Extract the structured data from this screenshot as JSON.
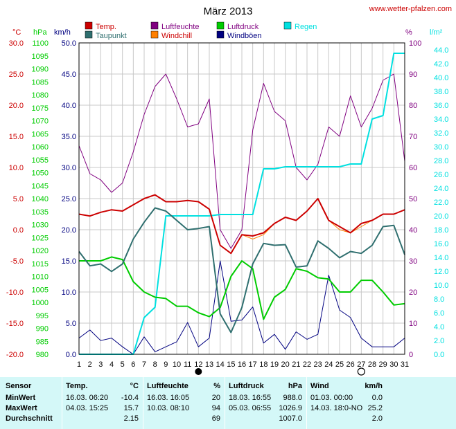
{
  "header": {
    "title": "März 2013",
    "site": "www.wetter-pfalzen.com"
  },
  "legend": {
    "temp": {
      "label": "Temp.",
      "color": "#cc0000"
    },
    "dew": {
      "label": "Taupunkt",
      "color": "#2f6f6f"
    },
    "humidity": {
      "label": "Luftfeuchte",
      "color": "#800080"
    },
    "windchill": {
      "label": "Windchill",
      "color": "#ff8000"
    },
    "pressure": {
      "label": "Luftdruck",
      "color": "#00cc00"
    },
    "gust": {
      "label": "Windböen",
      "color": "#000080"
    },
    "rain": {
      "label": "Regen",
      "color": "#00e0e0"
    }
  },
  "chart_data": {
    "type": "line",
    "x": [
      1,
      2,
      3,
      4,
      5,
      6,
      7,
      8,
      9,
      10,
      11,
      12,
      13,
      14,
      15,
      16,
      17,
      18,
      19,
      20,
      21,
      22,
      23,
      24,
      25,
      26,
      27,
      28,
      29,
      30,
      31
    ],
    "axes": {
      "temp": {
        "unit": "°C",
        "range": [
          -20,
          30
        ],
        "ticks": [
          "30.0",
          "25.0",
          "20.0",
          "15.0",
          "10.0",
          "5.0",
          "0.0",
          "-5.0",
          "-10.0",
          "-15.0",
          "-20.0"
        ],
        "color": "#cc0000"
      },
      "pressure": {
        "unit": "hPa",
        "range": [
          980,
          1100
        ],
        "ticks": [
          "1100",
          "1095",
          "1090",
          "1085",
          "1080",
          "1075",
          "1070",
          "1065",
          "1060",
          "1055",
          "1050",
          "1045",
          "1040",
          "1035",
          "1030",
          "1025",
          "1020",
          "1015",
          "1010",
          "1005",
          "1000",
          "995",
          "990",
          "985",
          "980"
        ],
        "color": "#00cc00"
      },
      "wind": {
        "unit": "km/h",
        "range": [
          0,
          50
        ],
        "ticks": [
          "50.0",
          "45.0",
          "40.0",
          "35.0",
          "30.0",
          "25.0",
          "20.0",
          "15.0",
          "10.0",
          "5.0",
          "0.0"
        ],
        "color": "#000080"
      },
      "humidity": {
        "unit": "%",
        "range": [
          0,
          100
        ],
        "ticks": [
          "100",
          "90",
          "80",
          "70",
          "60",
          "50",
          "40",
          "30",
          "20",
          "10",
          "0"
        ],
        "color": "#800080"
      },
      "rain": {
        "unit": "l/m²",
        "range": [
          0,
          45
        ],
        "ticks": [
          "44.0",
          "42.0",
          "40.0",
          "38.0",
          "36.0",
          "34.0",
          "32.0",
          "30.0",
          "28.0",
          "26.0",
          "24.0",
          "22.0",
          "20.0",
          "18.0",
          "16.0",
          "14.0",
          "12.0",
          "10.0",
          "8.0",
          "6.0",
          "4.0",
          "2.0",
          "0.0"
        ],
        "color": "#00e0e0"
      }
    },
    "x_ticks": [
      "1",
      "2",
      "3",
      "4",
      "5",
      "6",
      "7",
      "8",
      "9",
      "10",
      "11",
      "12",
      "13",
      "14",
      "15",
      "16",
      "17",
      "18",
      "19",
      "20",
      "21",
      "22",
      "23",
      "24",
      "25",
      "26",
      "27",
      "28",
      "29",
      "30",
      "31"
    ],
    "moon": {
      "full_moon_day": 12,
      "new_moon_day": 27
    },
    "grid": true,
    "series": [
      {
        "name": "Temp.",
        "axis": "temp",
        "values": [
          2.5,
          2.2,
          2.8,
          3.2,
          3.0,
          4.0,
          5.0,
          5.6,
          4.5,
          4.5,
          4.7,
          4.5,
          3.3,
          -2.5,
          -3.8,
          -0.8,
          -1.0,
          -0.5,
          1.0,
          2.0,
          1.5,
          3.0,
          5.0,
          1.5,
          0.5,
          -0.5,
          1.0,
          1.5,
          2.5,
          2.5,
          3.2
        ]
      },
      {
        "name": "Windchill",
        "axis": "temp",
        "values": [
          2.5,
          2.2,
          2.8,
          3.2,
          3.0,
          4.0,
          5.0,
          5.6,
          4.5,
          4.5,
          4.7,
          4.5,
          3.3,
          -2.5,
          -3.8,
          -0.8,
          -1.5,
          -0.8,
          1.0,
          2.0,
          1.5,
          3.0,
          5.0,
          1.5,
          0.0,
          -0.5,
          0.5,
          1.5,
          2.5,
          2.5,
          3.2
        ]
      },
      {
        "name": "Taupunkt",
        "axis": "temp",
        "values": [
          -3.5,
          -5.8,
          -5.5,
          -6.7,
          -5.5,
          -1.5,
          1.2,
          3.5,
          3.0,
          1.5,
          0.0,
          0.2,
          0.5,
          -13.5,
          -16.5,
          -12.5,
          -5.5,
          -2.2,
          -2.5,
          -2.4,
          -6.0,
          -5.8,
          -1.8,
          -3.0,
          -4.5,
          -3.5,
          -3.8,
          -2.5,
          0.5,
          0.7,
          -4.0
        ]
      },
      {
        "name": "Luftfeuchte",
        "axis": "humidity",
        "values": [
          67,
          58,
          56,
          52,
          55,
          65,
          77,
          86,
          90,
          82,
          73,
          74,
          82,
          40,
          34,
          40,
          72,
          87,
          78,
          75,
          60,
          56,
          61,
          73,
          70,
          83,
          73,
          79,
          88,
          90,
          62
        ]
      },
      {
        "name": "Luftdruck",
        "axis": "pressure",
        "values": [
          1016.0,
          1016.0,
          1016.0,
          1017.5,
          1016.5,
          1008.0,
          1004.0,
          1002.0,
          1001.5,
          998.5,
          998.5,
          996.0,
          994.5,
          998.0,
          1010.0,
          1016.0,
          1013.0,
          993.5,
          1002.0,
          1005.0,
          1013.0,
          1012.0,
          1009.5,
          1009.0,
          1004.0,
          1004.0,
          1008.5,
          1008.5,
          1004.0,
          999.0,
          999.5
        ]
      },
      {
        "name": "Windböen",
        "axis": "wind",
        "values": [
          2.6,
          3.9,
          2.2,
          2.6,
          1.2,
          0.0,
          2.8,
          0.4,
          1.2,
          2.0,
          5.1,
          1.2,
          2.6,
          15.0,
          5.3,
          5.5,
          7.6,
          1.8,
          3.2,
          0.8,
          3.6,
          2.4,
          3.2,
          12.7,
          7.1,
          5.9,
          2.6,
          1.2,
          1.2,
          1.2,
          2.6
        ]
      },
      {
        "name": "Regen",
        "axis": "rain",
        "values": [
          0.0,
          0.0,
          0.0,
          0.0,
          0.0,
          0.0,
          5.3,
          6.8,
          20.0,
          20.0,
          20.0,
          20.0,
          20.0,
          20.2,
          20.2,
          20.2,
          20.2,
          26.8,
          26.8,
          27.1,
          27.1,
          27.1,
          27.1,
          27.1,
          27.1,
          27.5,
          27.5,
          34.0,
          34.5,
          43.5,
          43.5
        ]
      }
    ]
  },
  "table": {
    "headers": {
      "sensor": "Sensor",
      "temp": "Temp.",
      "temp_unit": "°C",
      "hum": "Luftfeuchte",
      "hum_unit": "%",
      "press": "Luftdruck",
      "press_unit": "hPa",
      "wind": "Wind",
      "wind_unit": "km/h"
    },
    "rows": [
      {
        "label": "MinWert",
        "temp_time": "16.03.  06:20",
        "temp_val": "-10.4",
        "hum_time": "16.03.  16:05",
        "hum_val": "20",
        "press_time": "18.03.  16:55",
        "press_val": "988.0",
        "wind_time": "01.03.  00:00",
        "wind_val": "0.0"
      },
      {
        "label": "MaxWert",
        "temp_time": "04.03.  15:25",
        "temp_val": "15.7",
        "hum_time": "10.03.  08:10",
        "hum_val": "94",
        "press_time": "05.03.  06:55",
        "press_val": "1026.9",
        "wind_time": "14.03.  18:0-NO",
        "wind_val": "25.2"
      },
      {
        "label": "Durchschnitt",
        "temp_time": "",
        "temp_val": "2.15",
        "hum_time": "",
        "hum_val": "69",
        "press_time": "",
        "press_val": "1007.0",
        "wind_time": "",
        "wind_val": "2.0"
      }
    ]
  }
}
